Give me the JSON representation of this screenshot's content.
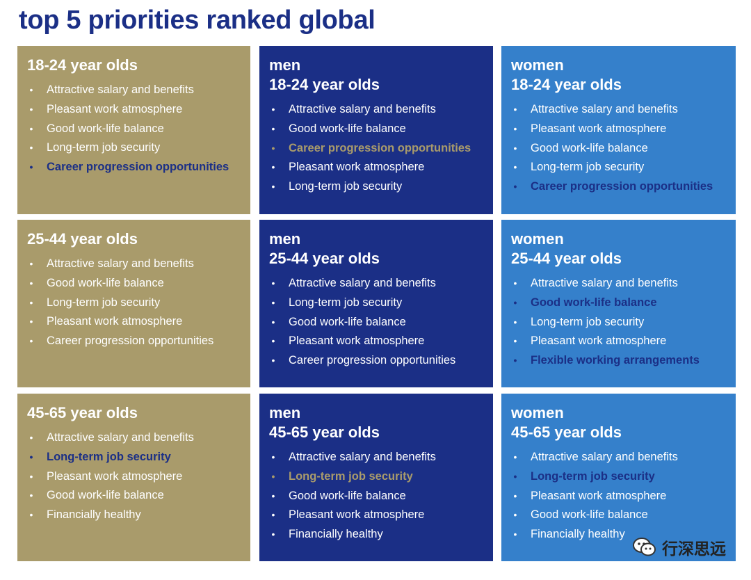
{
  "title": "top 5 priorities ranked global",
  "cards": [
    {
      "lines": [
        "18-24 year olds"
      ],
      "items": [
        {
          "text": "Attractive salary and benefits",
          "hl": false
        },
        {
          "text": "Pleasant work atmosphere",
          "hl": false
        },
        {
          "text": "Good work-life balance",
          "hl": false
        },
        {
          "text": "Long-term job security",
          "hl": false
        },
        {
          "text": "Career progression opportunities",
          "hl": true
        }
      ]
    },
    {
      "lines": [
        "men",
        "18-24 year olds"
      ],
      "items": [
        {
          "text": "Attractive salary and benefits",
          "hl": false
        },
        {
          "text": "Good work-life balance",
          "hl": false
        },
        {
          "text": "Career progression opportunities",
          "hl": true
        },
        {
          "text": "Pleasant work atmosphere",
          "hl": false
        },
        {
          "text": "Long-term job security",
          "hl": false
        }
      ]
    },
    {
      "lines": [
        "women",
        "18-24 year olds"
      ],
      "items": [
        {
          "text": "Attractive salary and benefits",
          "hl": false
        },
        {
          "text": "Pleasant work atmosphere",
          "hl": false
        },
        {
          "text": "Good work-life balance",
          "hl": false
        },
        {
          "text": "Long-term job security",
          "hl": false
        },
        {
          "text": "Career progression opportunities",
          "hl": true
        }
      ]
    },
    {
      "lines": [
        "25-44 year olds"
      ],
      "items": [
        {
          "text": "Attractive salary and benefits",
          "hl": false
        },
        {
          "text": "Good work-life balance",
          "hl": false
        },
        {
          "text": "Long-term job security",
          "hl": false
        },
        {
          "text": "Pleasant work atmosphere",
          "hl": false
        },
        {
          "text": "Career progression opportunities",
          "hl": false
        }
      ]
    },
    {
      "lines": [
        "men",
        "25-44 year olds"
      ],
      "items": [
        {
          "text": "Attractive salary and benefits",
          "hl": false
        },
        {
          "text": "Long-term job security",
          "hl": false
        },
        {
          "text": "Good work-life balance",
          "hl": false
        },
        {
          "text": "Pleasant work atmosphere",
          "hl": false
        },
        {
          "text": "Career progression opportunities",
          "hl": false
        }
      ]
    },
    {
      "lines": [
        "women",
        "25-44 year olds"
      ],
      "items": [
        {
          "text": "Attractive salary and benefits",
          "hl": false
        },
        {
          "text": "Good work-life balance",
          "hl": true
        },
        {
          "text": "Long-term job security",
          "hl": false
        },
        {
          "text": "Pleasant work atmosphere",
          "hl": false
        },
        {
          "text": "Flexible working arrangements",
          "hl": true
        }
      ]
    },
    {
      "lines": [
        "45-65 year olds"
      ],
      "items": [
        {
          "text": "Attractive salary and benefits",
          "hl": false
        },
        {
          "text": "Long-term job security",
          "hl": true
        },
        {
          "text": "Pleasant work atmosphere",
          "hl": false
        },
        {
          "text": "Good work-life balance",
          "hl": false
        },
        {
          "text": "Financially healthy",
          "hl": false
        }
      ]
    },
    {
      "lines": [
        "men",
        "45-65 year olds"
      ],
      "items": [
        {
          "text": "Attractive salary and benefits",
          "hl": false
        },
        {
          "text": "Long-term job security",
          "hl": true
        },
        {
          "text": "Good work-life balance",
          "hl": false
        },
        {
          "text": "Pleasant work atmosphere",
          "hl": false
        },
        {
          "text": "Financially healthy",
          "hl": false
        }
      ]
    },
    {
      "lines": [
        "women",
        "45-65 year olds"
      ],
      "items": [
        {
          "text": "Attractive salary and benefits",
          "hl": false
        },
        {
          "text": "Long-term job security",
          "hl": true
        },
        {
          "text": "Pleasant work atmosphere",
          "hl": false
        },
        {
          "text": "Good work-life balance",
          "hl": false
        },
        {
          "text": "Financially healthy",
          "hl": false
        }
      ]
    }
  ],
  "bullet_char": "•",
  "watermark": {
    "text": "行深思远",
    "icon": "wechat-icon"
  },
  "colors": {
    "gold": "#a99b6b",
    "dark_blue": "#1b2f86",
    "light_blue": "#3580cb"
  }
}
